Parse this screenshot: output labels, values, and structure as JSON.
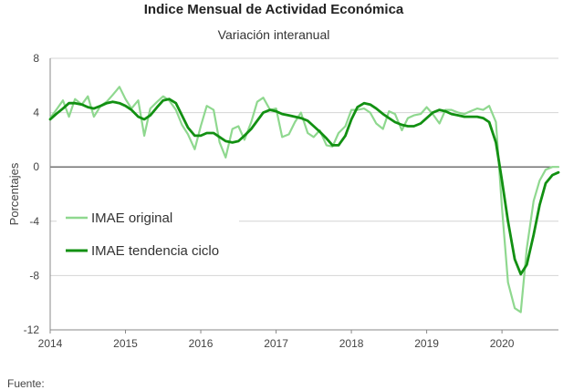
{
  "header": {
    "title": "Indice Mensual de  Actividad Económica",
    "subtitle": "Variación interanual"
  },
  "footer": {
    "source_label": "Fuente:"
  },
  "chart_data": {
    "type": "line",
    "title": "Indice Mensual de  Actividad Económica",
    "subtitle": "Variación interanual",
    "ylabel": "Porcentajes",
    "xlabel": "",
    "ylim": [
      -12,
      8
    ],
    "xlim": [
      2014.0,
      2020.75
    ],
    "yticks": [
      "8",
      "4",
      "0",
      "-4",
      "-8",
      "-12"
    ],
    "xticks": [
      "2014",
      "2015",
      "2016",
      "2017",
      "2018",
      "2019",
      "2020"
    ],
    "grid": "horizontal",
    "legend_position": "center-left",
    "series": [
      {
        "name": "IMAE original",
        "color": "#8fd88f",
        "x": [
          2014.0,
          2014.08,
          2014.17,
          2014.25,
          2014.33,
          2014.42,
          2014.5,
          2014.58,
          2014.67,
          2014.75,
          2014.83,
          2014.92,
          2015.0,
          2015.08,
          2015.17,
          2015.25,
          2015.33,
          2015.42,
          2015.5,
          2015.58,
          2015.67,
          2015.75,
          2015.83,
          2015.92,
          2016.0,
          2016.08,
          2016.17,
          2016.25,
          2016.33,
          2016.42,
          2016.5,
          2016.58,
          2016.67,
          2016.75,
          2016.83,
          2016.92,
          2017.0,
          2017.08,
          2017.17,
          2017.25,
          2017.33,
          2017.42,
          2017.5,
          2017.58,
          2017.67,
          2017.75,
          2017.83,
          2017.92,
          2018.0,
          2018.08,
          2018.17,
          2018.25,
          2018.33,
          2018.42,
          2018.5,
          2018.58,
          2018.67,
          2018.75,
          2018.83,
          2018.92,
          2019.0,
          2019.08,
          2019.17,
          2019.25,
          2019.33,
          2019.42,
          2019.5,
          2019.58,
          2019.67,
          2019.75,
          2019.83,
          2019.92,
          2020.0,
          2020.08,
          2020.17,
          2020.25,
          2020.33,
          2020.42,
          2020.5,
          2020.58,
          2020.67,
          2020.75
        ],
        "y": [
          3.6,
          4.2,
          4.9,
          3.7,
          5.0,
          4.6,
          5.2,
          3.7,
          4.5,
          4.8,
          5.3,
          5.9,
          5.0,
          4.3,
          4.9,
          2.3,
          4.3,
          4.8,
          5.2,
          4.9,
          4.2,
          3.1,
          2.4,
          1.3,
          3.0,
          4.5,
          4.2,
          1.8,
          0.7,
          2.8,
          3.0,
          2.0,
          3.3,
          4.8,
          5.1,
          4.2,
          4.3,
          2.2,
          2.4,
          3.3,
          4.0,
          2.5,
          2.2,
          2.7,
          1.6,
          1.5,
          2.5,
          3.0,
          4.2,
          4.2,
          4.3,
          4.0,
          3.2,
          2.8,
          4.1,
          3.9,
          2.7,
          3.6,
          3.8,
          3.9,
          4.4,
          3.9,
          3.2,
          4.2,
          4.2,
          4.0,
          3.9,
          4.1,
          4.3,
          4.2,
          4.5,
          3.3,
          -3.0,
          -8.5,
          -10.4,
          -10.7,
          -6.0,
          -2.5,
          -1.0,
          -0.2,
          0.0,
          0.0
        ]
      },
      {
        "name": "IMAE tendencia ciclo",
        "color": "#129012",
        "x": [
          2014.0,
          2014.08,
          2014.17,
          2014.25,
          2014.33,
          2014.42,
          2014.5,
          2014.58,
          2014.67,
          2014.75,
          2014.83,
          2014.92,
          2015.0,
          2015.08,
          2015.17,
          2015.25,
          2015.33,
          2015.42,
          2015.5,
          2015.58,
          2015.67,
          2015.75,
          2015.83,
          2015.92,
          2016.0,
          2016.08,
          2016.17,
          2016.25,
          2016.33,
          2016.42,
          2016.5,
          2016.58,
          2016.67,
          2016.75,
          2016.83,
          2016.92,
          2017.0,
          2017.08,
          2017.17,
          2017.25,
          2017.33,
          2017.42,
          2017.5,
          2017.58,
          2017.67,
          2017.75,
          2017.83,
          2017.92,
          2018.0,
          2018.08,
          2018.17,
          2018.25,
          2018.33,
          2018.42,
          2018.5,
          2018.58,
          2018.67,
          2018.75,
          2018.83,
          2018.92,
          2019.0,
          2019.08,
          2019.17,
          2019.25,
          2019.33,
          2019.42,
          2019.5,
          2019.58,
          2019.67,
          2019.75,
          2019.83,
          2019.92,
          2020.0,
          2020.08,
          2020.17,
          2020.25,
          2020.33,
          2020.42,
          2020.5,
          2020.58,
          2020.67,
          2020.75
        ],
        "y": [
          3.5,
          3.9,
          4.3,
          4.7,
          4.7,
          4.6,
          4.4,
          4.3,
          4.5,
          4.7,
          4.8,
          4.7,
          4.5,
          4.2,
          3.7,
          3.5,
          3.8,
          4.4,
          4.9,
          5.0,
          4.7,
          3.8,
          2.9,
          2.3,
          2.3,
          2.5,
          2.5,
          2.2,
          1.9,
          1.8,
          1.9,
          2.3,
          2.8,
          3.4,
          4.0,
          4.2,
          4.1,
          3.9,
          3.8,
          3.7,
          3.6,
          3.4,
          3.0,
          2.6,
          2.1,
          1.6,
          1.6,
          2.3,
          3.5,
          4.4,
          4.7,
          4.6,
          4.3,
          3.9,
          3.6,
          3.3,
          3.1,
          3.0,
          3.0,
          3.2,
          3.6,
          4.0,
          4.2,
          4.1,
          3.9,
          3.8,
          3.7,
          3.7,
          3.7,
          3.6,
          3.3,
          1.8,
          -1.0,
          -4.0,
          -6.8,
          -7.9,
          -7.2,
          -5.0,
          -2.8,
          -1.2,
          -0.6,
          -0.4
        ]
      }
    ]
  }
}
